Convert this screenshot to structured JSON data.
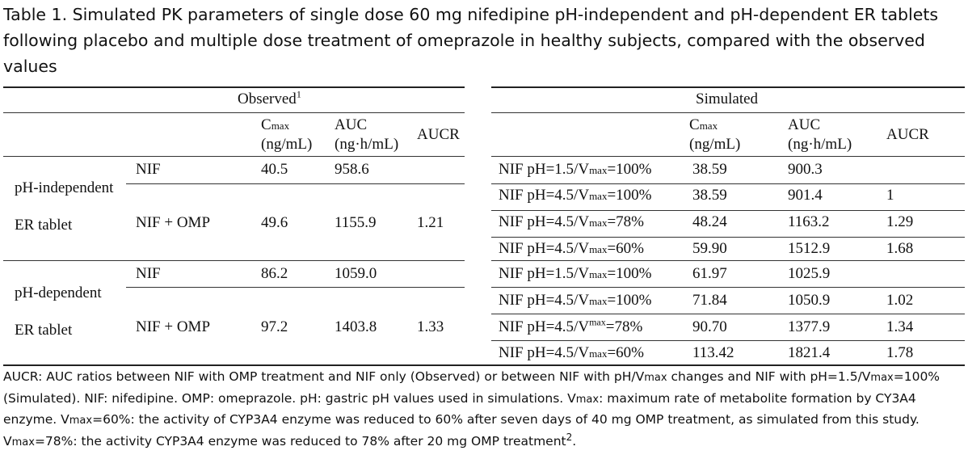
{
  "caption": "Table 1. Simulated PK parameters of single dose 60 mg nifedipine pH-independent and pH-dependent ER tablets following placebo and multiple dose treatment of omeprazole in healthy subjects, compared with the observed values",
  "observed": {
    "header": "Observed",
    "header_sup": "1",
    "col_cmax": "C",
    "col_cmax_sub": "max",
    "col_cmax_unit": "(ng/mL)",
    "col_auc": "AUC",
    "col_auc_unit": "(ng·h/mL)",
    "col_aucr": "AUCR",
    "groups": [
      {
        "label_line1": "pH-independent",
        "label_line2": "ER tablet",
        "rows": [
          {
            "treatment": "NIF",
            "cmax": "40.5",
            "auc": "958.6",
            "aucr": ""
          },
          {
            "treatment": "NIF + OMP",
            "cmax": "49.6",
            "auc": "1155.9",
            "aucr": "1.21"
          }
        ]
      },
      {
        "label_line1": "pH-dependent",
        "label_line2": "ER tablet",
        "rows": [
          {
            "treatment": "NIF",
            "cmax": "86.2",
            "auc": "1059.0",
            "aucr": ""
          },
          {
            "treatment": "NIF + OMP",
            "cmax": "97.2",
            "auc": "1403.8",
            "aucr": "1.33"
          }
        ]
      }
    ]
  },
  "simulated": {
    "header": "Simulated",
    "col_cmax": "C",
    "col_cmax_sub": "max",
    "col_cmax_unit": "(ng/mL)",
    "col_auc": "AUC",
    "col_auc_unit": "(ng·h/mL)",
    "col_aucr": "AUCR",
    "rows": [
      {
        "pre": "NIF pH=1.5/V",
        "mark": "max",
        "mark_type": "sub",
        "post": "=100%",
        "cmax": "38.59",
        "auc": "900.3",
        "aucr": ""
      },
      {
        "pre": "NIF pH=4.5/V",
        "mark": "max",
        "mark_type": "sub",
        "post": "=100%",
        "cmax": "38.59",
        "auc": "901.4",
        "aucr": "1"
      },
      {
        "pre": "NIF pH=4.5/V",
        "mark": "max",
        "mark_type": "sub",
        "post": "=78%",
        "cmax": "48.24",
        "auc": "1163.2",
        "aucr": "1.29"
      },
      {
        "pre": "NIF pH=4.5/V",
        "mark": "max",
        "mark_type": "sub",
        "post": "=60%",
        "cmax": "59.90",
        "auc": "1512.9",
        "aucr": "1.68"
      },
      {
        "pre": "NIF pH=1.5/V",
        "mark": "max",
        "mark_type": "sub",
        "post": "=100%",
        "cmax": "61.97",
        "auc": "1025.9",
        "aucr": ""
      },
      {
        "pre": "NIF pH=4.5/V",
        "mark": "max",
        "mark_type": "sub",
        "post": "=100%",
        "cmax": "71.84",
        "auc": "1050.9",
        "aucr": "1.02"
      },
      {
        "pre": "NIF pH=4.5/V",
        "mark": "max",
        "mark_type": "sup",
        "post": "=78%",
        "cmax": "90.70",
        "auc": "1377.9",
        "aucr": "1.34"
      },
      {
        "pre": "NIF pH=4.5/V",
        "mark": "max",
        "mark_type": "sub",
        "post": "=60%",
        "cmax": "113.42",
        "auc": "1821.4",
        "aucr": "1.78"
      }
    ]
  },
  "footnote": {
    "p1": "AUCR: AUC ratios between NIF with OMP treatment and NIF only (Observed) or between NIF with pH/V",
    "s1": "max",
    "p2": " changes and NIF with pH=1.5/V",
    "s2": "max",
    "p3": "=100% (Simulated). NIF: nifedipine. OMP: omeprazole. pH: gastric pH values used in simulations. V",
    "s3": "max",
    "p4": ": maximum rate of metabolite formation by CY3A4 enzyme. V",
    "s4": "max",
    "p5": "=60%: the activity of CYP3A4 enzyme was reduced to 60% after seven days of 40 mg OMP treatment, as simulated from this study. V",
    "s5": "max",
    "p6": "=78%: the activity CYP3A4 enzyme was reduced to 78% after 20 mg OMP treatment",
    "ref": "2",
    "p7": "."
  }
}
